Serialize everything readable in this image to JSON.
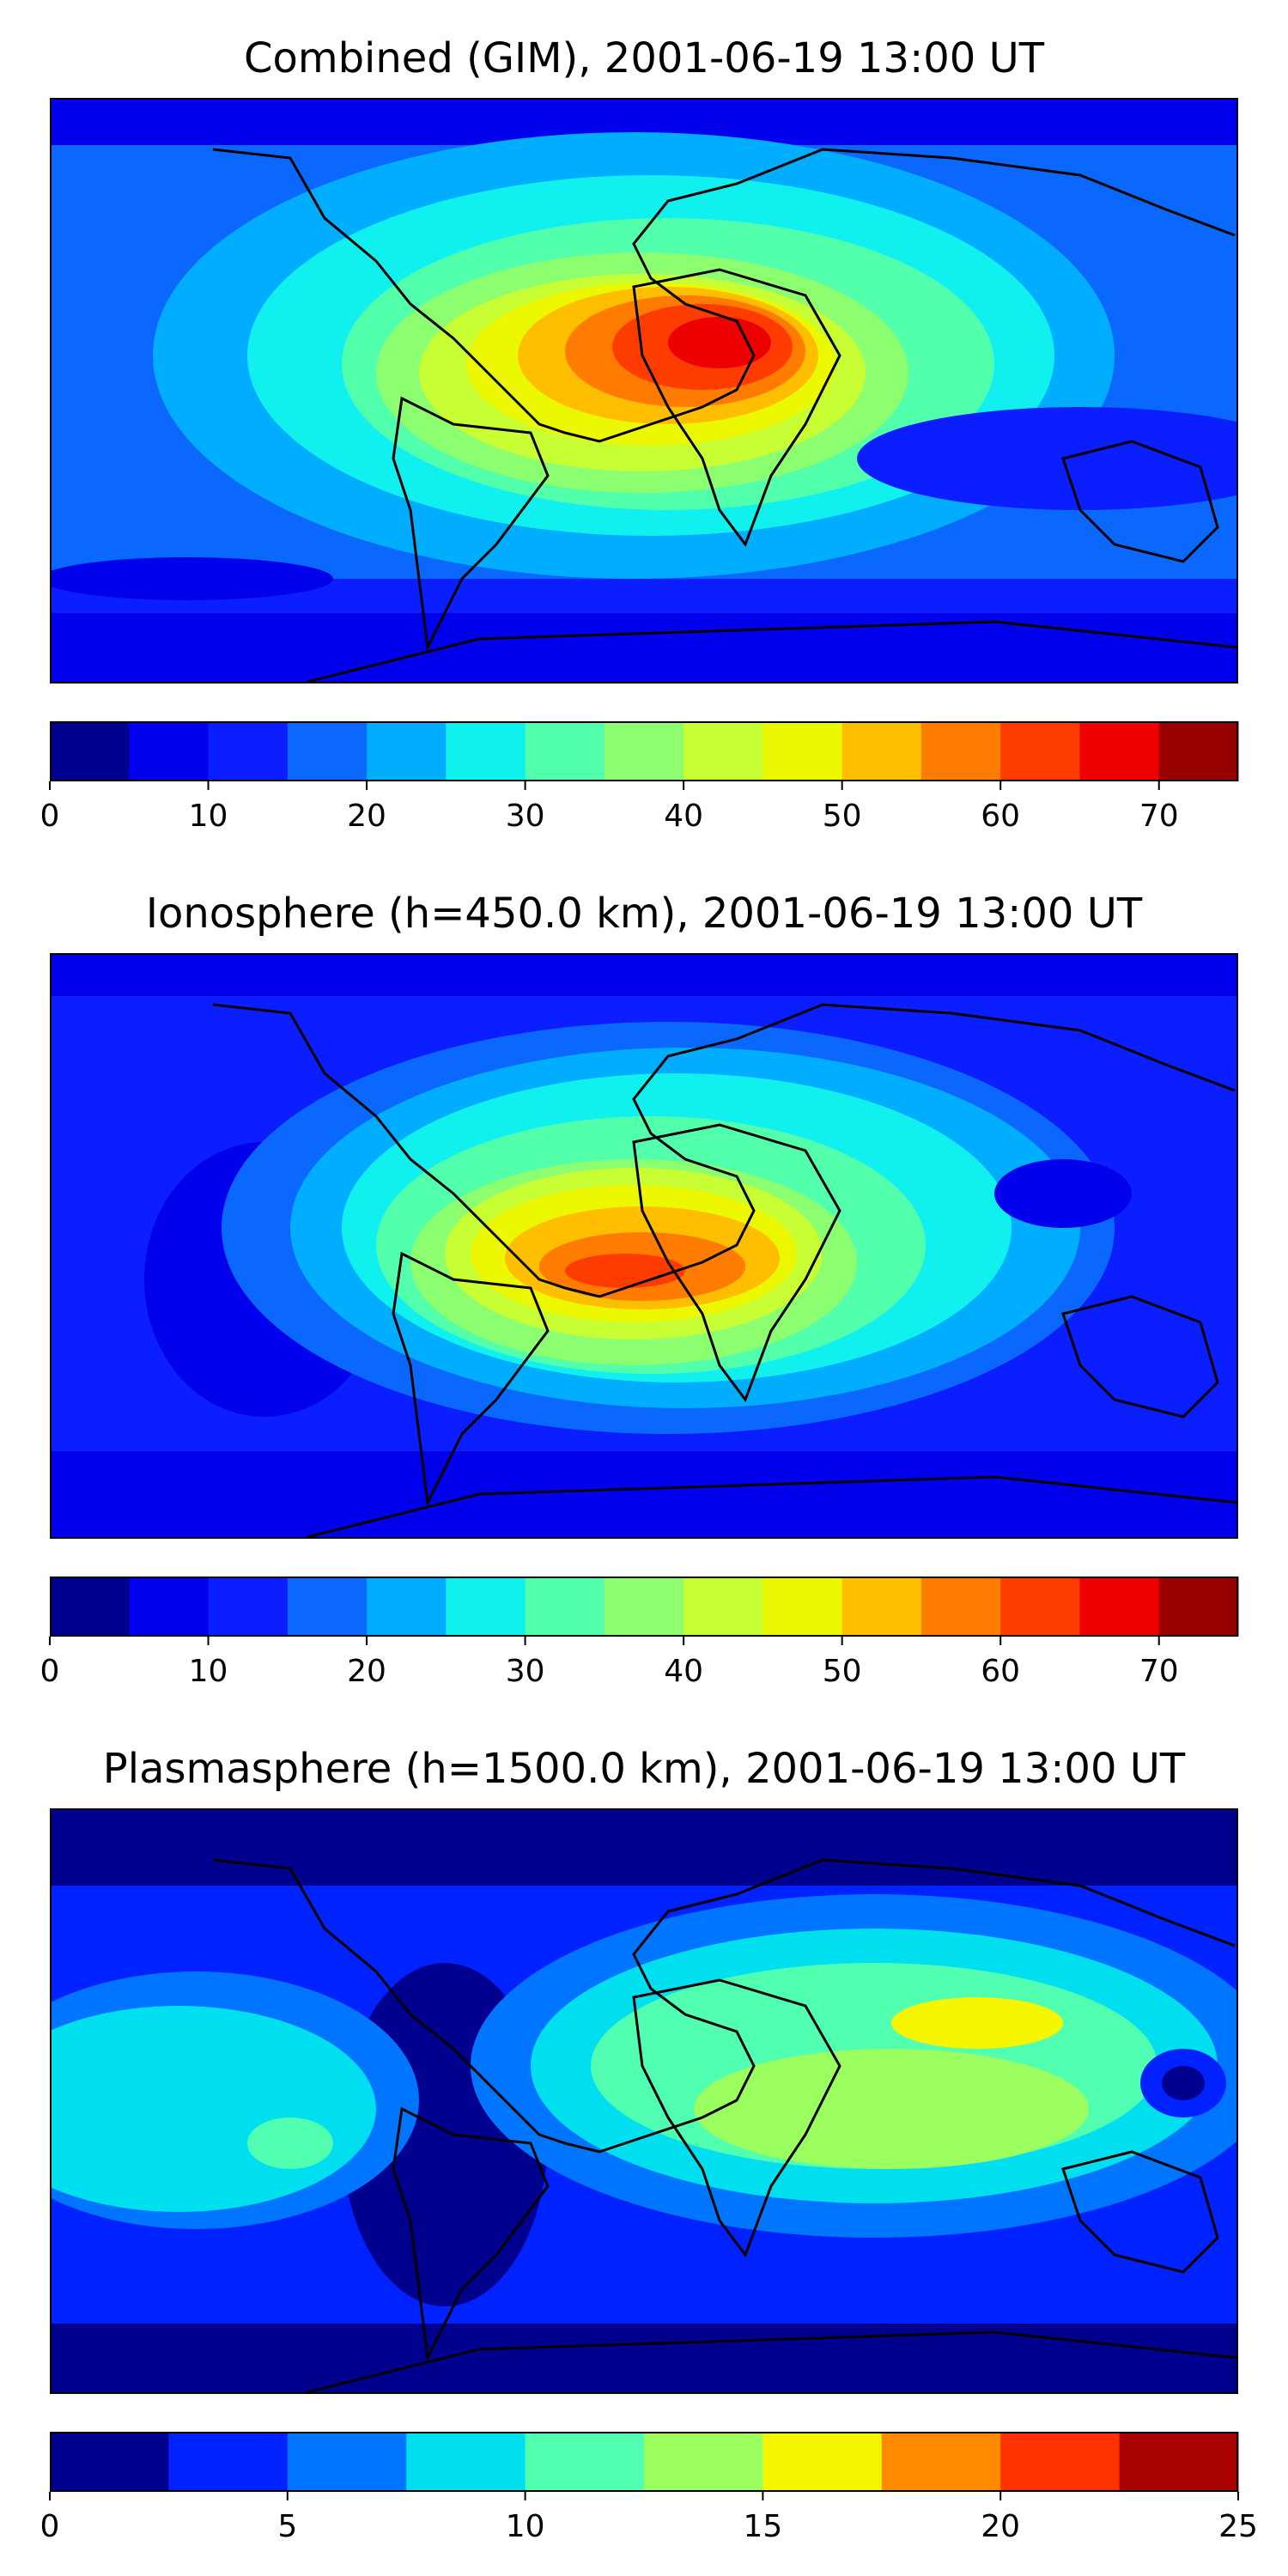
{
  "figure": {
    "panels": [
      {
        "title": "Combined (GIM), 2001-06-19 13:00 UT",
        "colorbar": {
          "min": 0,
          "max": 75,
          "step": 5,
          "tick_labels": [
            "0",
            "10",
            "20",
            "30",
            "40",
            "50",
            "60",
            "70"
          ],
          "tick_values": [
            0,
            10,
            20,
            30,
            40,
            50,
            60,
            70
          ]
        }
      },
      {
        "title": "Ionosphere  (h=450.0 km), 2001-06-19 13:00 UT",
        "colorbar": {
          "min": 0,
          "max": 75,
          "step": 5,
          "tick_labels": [
            "0",
            "10",
            "20",
            "30",
            "40",
            "50",
            "60",
            "70"
          ],
          "tick_values": [
            0,
            10,
            20,
            30,
            40,
            50,
            60,
            70
          ]
        }
      },
      {
        "title": "Plasmasphere (h=1500.0 km), 2001-06-19 13:00 UT",
        "colorbar": {
          "min": 0,
          "max": 25,
          "step": 2.5,
          "tick_labels": [
            "0",
            "5",
            "10",
            "15",
            "20",
            "25"
          ],
          "tick_values": [
            0,
            5,
            10,
            15,
            20,
            25
          ]
        }
      }
    ]
  },
  "colors": {
    "jet_bins_15": [
      "#00008f",
      "#0000ed",
      "#0a1eff",
      "#0b68ff",
      "#00adff",
      "#10f0ef",
      "#52ffab",
      "#8cff70",
      "#c8ff34",
      "#ecf800",
      "#ffbf00",
      "#ff7c00",
      "#ff3c00",
      "#ed0000",
      "#990000"
    ],
    "jet_bins_10": [
      "#00008f",
      "#0022ff",
      "#0075ff",
      "#00dfef",
      "#50ffaf",
      "#9bff60",
      "#f5f500",
      "#ff8a00",
      "#ff3200",
      "#a90000"
    ]
  }
}
